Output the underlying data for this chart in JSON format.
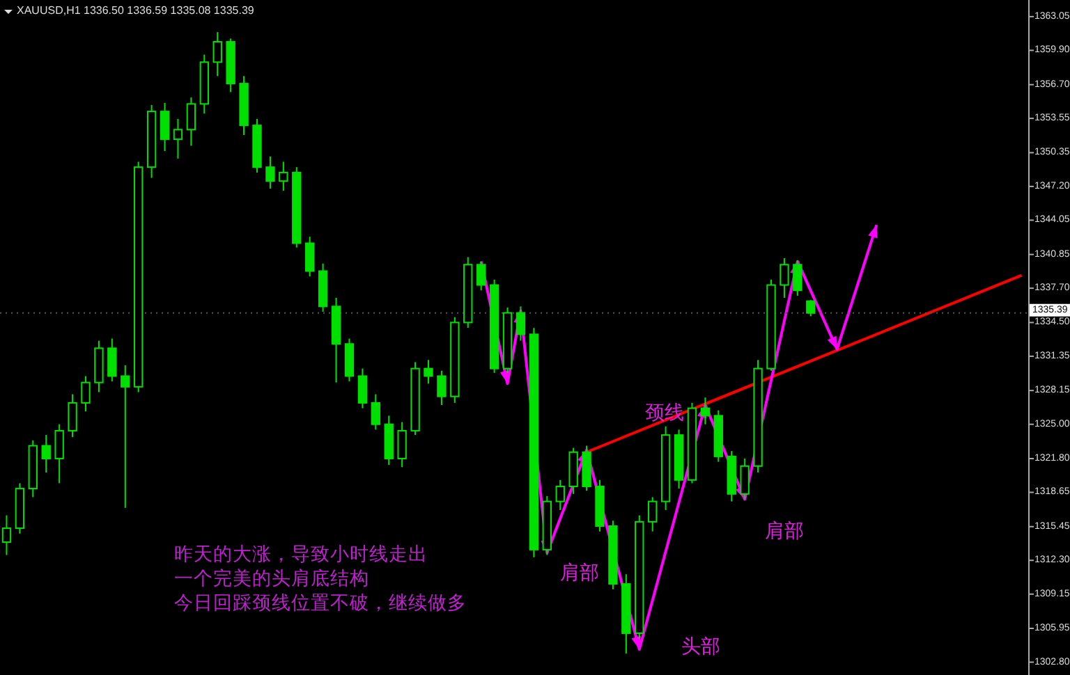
{
  "chart_data": {
    "type": "candlestick",
    "title": "XAUUSD,H1  1336.50 1336.59 1335.08 1335.39",
    "categories": [
      null,
      null,
      null,
      null,
      null,
      null,
      null,
      null,
      null,
      null,
      null,
      null,
      null,
      null,
      null,
      null,
      null,
      null,
      null,
      null,
      null,
      null,
      null,
      null,
      null,
      null,
      null,
      null,
      null,
      null,
      null,
      null,
      null,
      null,
      null,
      null,
      null,
      null,
      null,
      null,
      null,
      null,
      null,
      null,
      null,
      null,
      null,
      null,
      null,
      null,
      null,
      null,
      null,
      null,
      null,
      null,
      null,
      null,
      null,
      null,
      null,
      null,
      null,
      null,
      null,
      null,
      null,
      null,
      null,
      null,
      null,
      null,
      null,
      null,
      null,
      null,
      null,
      null
    ],
    "ohlc": [
      [
        1314.0,
        1316.5,
        1312.8,
        1315.3
      ],
      [
        1315.3,
        1319.5,
        1314.8,
        1319.0
      ],
      [
        1319.0,
        1323.5,
        1318.2,
        1323.0
      ],
      [
        1323.0,
        1324.0,
        1320.5,
        1321.8
      ],
      [
        1321.8,
        1325.0,
        1319.5,
        1324.4
      ],
      [
        1324.4,
        1327.8,
        1323.8,
        1327.0
      ],
      [
        1327.0,
        1329.5,
        1326.2,
        1328.9
      ],
      [
        1328.9,
        1332.8,
        1328.0,
        1332.1
      ],
      [
        1332.1,
        1333.0,
        1329.0,
        1329.5
      ],
      [
        1329.5,
        1330.5,
        1317.2,
        1328.5
      ],
      [
        1328.5,
        1349.5,
        1328.0,
        1349.0
      ],
      [
        1349.0,
        1354.8,
        1348.0,
        1354.2
      ],
      [
        1354.2,
        1355.0,
        1350.5,
        1351.6
      ],
      [
        1351.6,
        1353.5,
        1349.8,
        1352.5
      ],
      [
        1352.5,
        1355.5,
        1351.0,
        1354.9
      ],
      [
        1354.9,
        1359.5,
        1354.0,
        1358.8
      ],
      [
        1358.8,
        1361.6,
        1357.5,
        1360.7
      ],
      [
        1360.7,
        1361.0,
        1356.0,
        1356.8
      ],
      [
        1356.8,
        1357.5,
        1352.0,
        1352.9
      ],
      [
        1352.9,
        1353.5,
        1348.5,
        1349.0
      ],
      [
        1349.0,
        1350.0,
        1347.0,
        1347.7
      ],
      [
        1347.7,
        1349.5,
        1346.8,
        1348.5
      ],
      [
        1348.5,
        1349.0,
        1341.5,
        1341.9
      ],
      [
        1341.9,
        1342.5,
        1338.8,
        1339.3
      ],
      [
        1339.3,
        1340.0,
        1335.5,
        1336.0
      ],
      [
        1336.0,
        1336.8,
        1328.9,
        1332.5
      ],
      [
        1332.5,
        1333.0,
        1329.0,
        1329.5
      ],
      [
        1329.5,
        1330.2,
        1326.5,
        1327.0
      ],
      [
        1327.0,
        1327.8,
        1324.5,
        1325.0
      ],
      [
        1325.0,
        1325.8,
        1321.2,
        1321.8
      ],
      [
        1321.8,
        1325.2,
        1321.0,
        1324.4
      ],
      [
        1324.4,
        1330.8,
        1324.0,
        1330.2
      ],
      [
        1330.2,
        1331.0,
        1328.8,
        1329.5
      ],
      [
        1329.5,
        1330.0,
        1326.8,
        1327.6
      ],
      [
        1327.6,
        1335.0,
        1327.0,
        1334.5
      ],
      [
        1334.5,
        1340.6,
        1334.0,
        1339.9
      ],
      [
        1339.9,
        1340.2,
        1337.5,
        1338.0
      ],
      [
        1338.0,
        1338.5,
        1329.8,
        1330.2
      ],
      [
        1330.2,
        1335.9,
        1329.8,
        1335.4
      ],
      [
        1335.4,
        1336.0,
        1332.8,
        1333.4
      ],
      [
        1333.4,
        1334.0,
        1312.6,
        1313.3
      ],
      [
        1313.3,
        1318.3,
        1312.8,
        1317.8
      ],
      [
        1317.8,
        1319.8,
        1317.0,
        1319.2
      ],
      [
        1319.2,
        1322.8,
        1318.5,
        1322.4
      ],
      [
        1322.4,
        1323.0,
        1318.8,
        1319.2
      ],
      [
        1319.2,
        1319.8,
        1315.0,
        1315.5
      ],
      [
        1315.5,
        1316.0,
        1309.6,
        1310.1
      ],
      [
        1310.1,
        1311.0,
        1303.6,
        1305.5
      ],
      [
        1305.5,
        1316.5,
        1305.0,
        1315.9
      ],
      [
        1315.9,
        1318.2,
        1315.0,
        1317.8
      ],
      [
        1317.8,
        1324.8,
        1317.0,
        1324.0
      ],
      [
        1324.0,
        1324.5,
        1319.0,
        1319.8
      ],
      [
        1319.8,
        1327.0,
        1319.5,
        1326.5
      ],
      [
        1326.5,
        1327.5,
        1325.0,
        1325.8
      ],
      [
        1325.8,
        1326.3,
        1321.5,
        1322.0
      ],
      [
        1322.0,
        1322.5,
        1317.8,
        1318.5
      ],
      [
        1318.5,
        1321.8,
        1318.0,
        1321.1
      ],
      [
        1321.1,
        1331.0,
        1320.5,
        1330.2
      ],
      [
        1330.2,
        1338.5,
        1330.0,
        1338.0
      ],
      [
        1338.0,
        1340.5,
        1336.8,
        1339.9
      ],
      [
        1339.9,
        1340.3,
        1337.0,
        1337.5
      ],
      [
        1336.5,
        1336.59,
        1335.08,
        1335.39
      ],
      null,
      null,
      null,
      null,
      null,
      null,
      null,
      null,
      null,
      null,
      null,
      null,
      null,
      null,
      null,
      null
    ],
    "color": "#00e000",
    "series": [
      {
        "type": "line",
        "color": "#ff0000",
        "values": [
          null,
          null,
          null,
          null,
          null,
          null,
          null,
          null,
          null,
          null,
          null,
          null,
          null,
          null,
          null,
          null,
          null,
          null,
          null,
          null,
          null,
          null,
          null,
          null,
          null,
          null,
          null,
          null,
          null,
          null,
          null,
          null,
          null,
          null,
          null,
          null,
          null,
          null,
          null,
          null,
          null,
          null,
          null,
          null,
          1322.4,
          null,
          null,
          null,
          null,
          null,
          null,
          null,
          null,
          null,
          null,
          null,
          null,
          null,
          null,
          null,
          null,
          null,
          null,
          null,
          null,
          null,
          null,
          null,
          null,
          null,
          null,
          null,
          null,
          null,
          null,
          null,
          null,
          1338.9
        ]
      },
      {
        "type": "line",
        "color": "#ff00ff",
        "values": [
          null,
          null,
          null,
          null,
          null,
          null,
          null,
          null,
          null,
          null,
          null,
          null,
          null,
          null,
          null,
          null,
          null,
          null,
          null,
          null,
          null,
          null,
          null,
          null,
          null,
          null,
          null,
          null,
          null,
          null,
          null,
          null,
          null,
          null,
          null,
          null,
          1340.2,
          null,
          1328.8,
          1335.6,
          null,
          1313.0,
          null,
          null,
          1322.6,
          null,
          null,
          null,
          1304.0,
          null,
          null,
          null,
          null,
          1326.8,
          null,
          null,
          1318.0,
          null,
          null,
          null,
          1340.2,
          null,
          null,
          1332.0,
          null,
          null,
          1343.6,
          null,
          null,
          null,
          null,
          null,
          null,
          null,
          null,
          null,
          null,
          null
        ]
      }
    ],
    "ylim": [
      1301.6,
      1364.6
    ],
    "yticks": [
      {
        "value": 1302.8,
        "label": "1302.80"
      },
      1305.95,
      1309.15,
      {
        "value": 1312.3,
        "label": "1312.30"
      },
      1315.45,
      1318.65,
      {
        "value": 1321.8,
        "label": "1321.80"
      },
      {
        "value": 1325,
        "label": "1325.00"
      },
      1328.15,
      1331.35,
      {
        "value": 1334.5,
        "label": "1334.50"
      },
      {
        "value": 1337.7,
        "label": "1337.70"
      },
      1340.85,
      1344.05,
      {
        "value": 1347.2,
        "label": "1347.20"
      },
      1350.35,
      1353.55,
      {
        "value": 1356.7,
        "label": "1356.70"
      },
      {
        "value": 1359.9,
        "label": "1359.90"
      },
      1363.05
    ],
    "ref_lines": [
      {
        "axis": "y",
        "value": 1335.39,
        "label": "1335.39"
      }
    ],
    "annotations": [
      "颈线",
      "肩部",
      "头部",
      "肩部",
      "昨天的大涨，导致小时线走出",
      "一个完美的头肩底结构",
      "今日回踩颈线位置不破，继续做多"
    ],
    "tick_labels": "y",
    "grid": false
  }
}
